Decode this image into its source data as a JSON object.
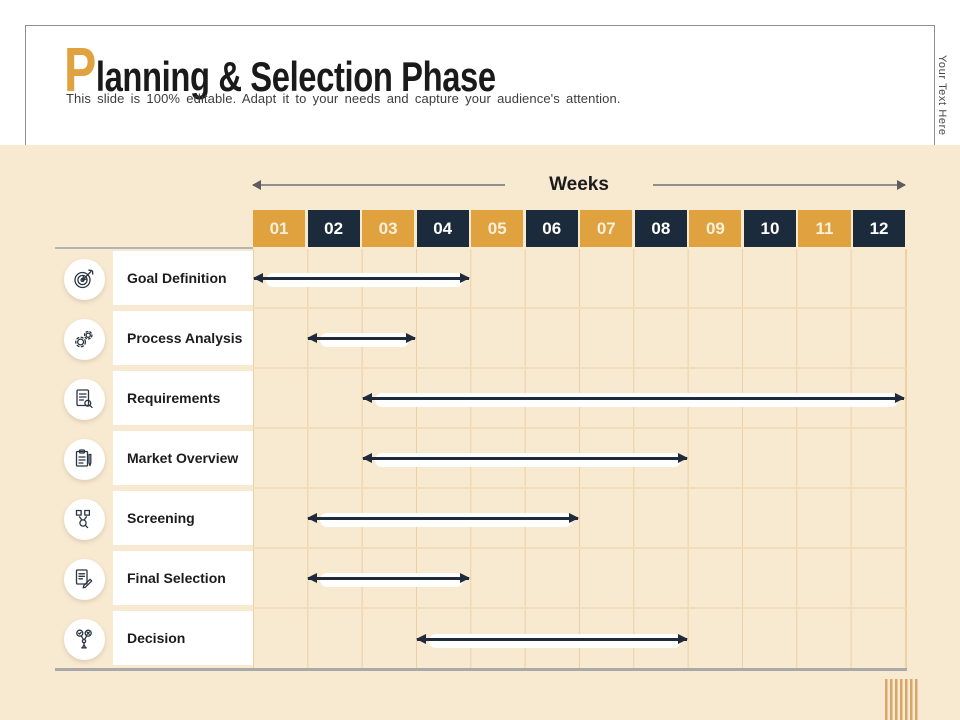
{
  "slide": {
    "title": {
      "first_letter": "P",
      "rest": "lanning & Selection Phase"
    },
    "subtitle": "This slide is 100% editable. Adapt it to your needs and capture your audience's attention.",
    "side_label": "Your Text Here"
  },
  "colors": {
    "accent_orange": "#DFA23E",
    "dark_navy": "#1C2B3B",
    "beige_background": "#F8E9D1",
    "grid_line": "#EDD0A0",
    "bar_arrow": "#1F2B3A",
    "bar_highlight": "#FFFFFF",
    "border_gray": "#A9A9A9"
  },
  "timeline": {
    "axis_label": "Weeks",
    "weeks": [
      "01",
      "02",
      "03",
      "04",
      "05",
      "06",
      "07",
      "08",
      "09",
      "10",
      "11",
      "12"
    ],
    "total_weeks": 12
  },
  "chart_data": {
    "type": "gantt",
    "title": "Planning & Selection Phase",
    "xlabel": "Weeks",
    "x_categories": [
      "01",
      "02",
      "03",
      "04",
      "05",
      "06",
      "07",
      "08",
      "09",
      "10",
      "11",
      "12"
    ],
    "x_range": [
      1,
      12
    ],
    "grid": true,
    "tasks": [
      {
        "label": "Goal Definition",
        "start_week": 1,
        "end_week": 4,
        "icon": "target-icon"
      },
      {
        "label": "Process Analysis",
        "start_week": 2,
        "end_week": 3,
        "icon": "gears-icon"
      },
      {
        "label": "Requirements",
        "start_week": 3,
        "end_week": 12,
        "icon": "checklist-document-icon"
      },
      {
        "label": "Market Overview",
        "start_week": 3,
        "end_week": 8,
        "icon": "clipboard-pen-icon"
      },
      {
        "label": "Screening",
        "start_week": 2,
        "end_week": 6,
        "icon": "magnifier-screening-icon"
      },
      {
        "label": "Final Selection",
        "start_week": 2,
        "end_week": 4,
        "icon": "document-signature-icon"
      },
      {
        "label": "Decision",
        "start_week": 4,
        "end_week": 8,
        "icon": "person-choice-icon"
      }
    ]
  }
}
